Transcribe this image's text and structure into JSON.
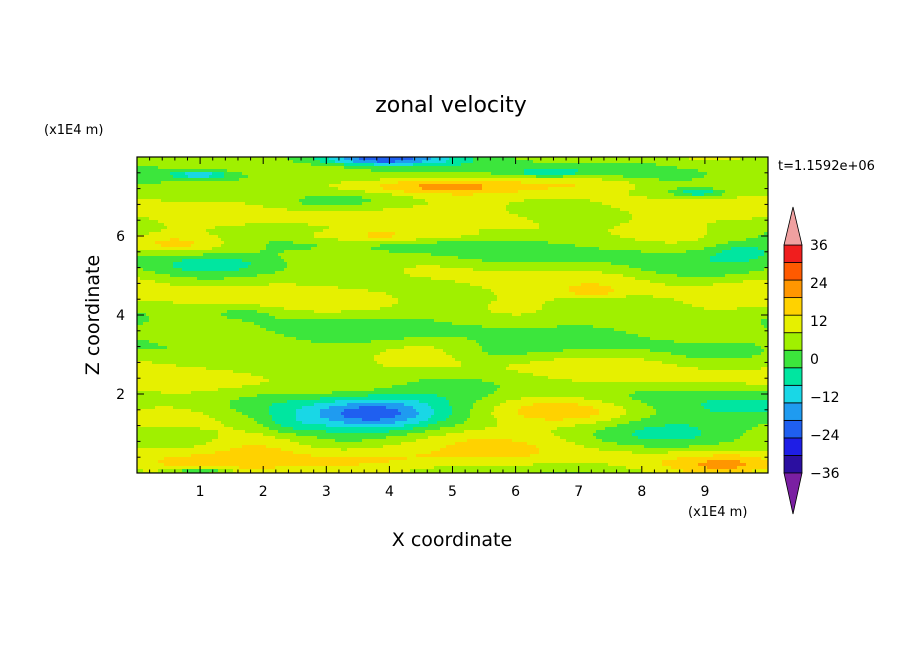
{
  "chart_data": {
    "type": "heatmap",
    "title": "zonal velocity",
    "xlabel": "X coordinate",
    "ylabel": "Z coordinate",
    "x_unit": "(x1E4 m)",
    "y_unit": "(x1E4 m)",
    "time_label": "t=1.1592e+06",
    "xlim": [
      0,
      10
    ],
    "ylim": [
      0,
      8
    ],
    "x_ticks": [
      {
        "v": 1,
        "label": "1"
      },
      {
        "v": 2,
        "label": "2"
      },
      {
        "v": 3,
        "label": "3"
      },
      {
        "v": 4,
        "label": "4"
      },
      {
        "v": 5,
        "label": "5"
      },
      {
        "v": 6,
        "label": "6"
      },
      {
        "v": 7,
        "label": "7"
      },
      {
        "v": 8,
        "label": "8"
      },
      {
        "v": 9,
        "label": "9"
      }
    ],
    "y_ticks": [
      {
        "v": 2,
        "label": "2"
      },
      {
        "v": 4,
        "label": "4"
      },
      {
        "v": 6,
        "label": "6"
      }
    ],
    "colorbar": {
      "levels": [
        -42,
        -36,
        -30,
        -24,
        -18,
        -12,
        -6,
        0,
        6,
        12,
        18,
        24,
        30,
        36,
        42
      ],
      "colors": [
        "#7a1fa2",
        "#2b0fa0",
        "#1e1ee6",
        "#1f5ff0",
        "#1f9bf0",
        "#19d7e6",
        "#00e6a0",
        "#3ce63c",
        "#a0f000",
        "#e6f000",
        "#ffd200",
        "#ff9600",
        "#ff5a00",
        "#f01e1e",
        "#f0a0a0"
      ],
      "under_color": "#7a1fa2",
      "over_color": "#f0a0a0",
      "labels": [
        {
          "v": 36,
          "label": "36"
        },
        {
          "v": 24,
          "label": "24"
        },
        {
          "v": 12,
          "label": "12"
        },
        {
          "v": 0,
          "label": "0"
        },
        {
          "v": -12,
          "label": "−12"
        },
        {
          "v": -24,
          "label": "−24"
        },
        {
          "v": -36,
          "label": "−36"
        }
      ]
    },
    "features": [
      {
        "x": 3.6,
        "z": 1.5,
        "rx": 1.9,
        "rz": 0.8,
        "amp": -14
      },
      {
        "x": 3.7,
        "z": 1.55,
        "rx": 0.9,
        "rz": 0.35,
        "amp": -12
      },
      {
        "x": 2.4,
        "z": 1.2,
        "rx": 0.5,
        "rz": 0.25,
        "amp": -6
      },
      {
        "x": 0.8,
        "z": 1.45,
        "rx": 1.5,
        "rz": 0.5,
        "amp": 10
      },
      {
        "x": 6.8,
        "z": 1.55,
        "rx": 1.6,
        "rz": 0.35,
        "amp": 14
      },
      {
        "x": 6.0,
        "z": 1.1,
        "rx": 1.6,
        "rz": 0.5,
        "amp": 6
      },
      {
        "x": 9.0,
        "z": 1.6,
        "rx": 1.6,
        "rz": 0.6,
        "amp": -9
      },
      {
        "x": 1.9,
        "z": 0.7,
        "rx": 0.8,
        "rz": 0.35,
        "amp": 6
      },
      {
        "x": 3.5,
        "z": 0.35,
        "rx": 2.5,
        "rz": 0.3,
        "amp": 10
      },
      {
        "x": 8.0,
        "z": 0.8,
        "rx": 1.2,
        "rz": 0.4,
        "amp": -7
      },
      {
        "x": 9.4,
        "z": 0.2,
        "rx": 0.8,
        "rz": 0.25,
        "amp": 10
      },
      {
        "x": 1.0,
        "z": 0.05,
        "rx": 0.5,
        "rz": 0.1,
        "amp": -16
      },
      {
        "x": 4.5,
        "z": 7.25,
        "rx": 1.8,
        "rz": 0.2,
        "amp": 14
      },
      {
        "x": 7.3,
        "z": 7.35,
        "rx": 1.2,
        "rz": 0.2,
        "amp": 9
      },
      {
        "x": 9.6,
        "z": 7.35,
        "rx": 0.7,
        "rz": 0.2,
        "amp": 7
      },
      {
        "x": 0.8,
        "z": 7.3,
        "rx": 0.7,
        "rz": 0.2,
        "amp": 7
      },
      {
        "x": 3.8,
        "z": 7.95,
        "rx": 1.0,
        "rz": 0.15,
        "amp": -28
      },
      {
        "x": 1.0,
        "z": 7.55,
        "rx": 0.4,
        "rz": 0.08,
        "amp": -18
      },
      {
        "x": 8.9,
        "z": 7.1,
        "rx": 0.4,
        "rz": 0.1,
        "amp": -14
      },
      {
        "x": 6.5,
        "z": 7.6,
        "rx": 0.6,
        "rz": 0.1,
        "amp": -10
      },
      {
        "x": 4.0,
        "z": 6.0,
        "rx": 1.5,
        "rz": 0.15,
        "amp": 11
      },
      {
        "x": 0.6,
        "z": 5.8,
        "rx": 0.8,
        "rz": 0.2,
        "amp": 8
      },
      {
        "x": 1.2,
        "z": 5.3,
        "rx": 0.7,
        "rz": 0.2,
        "amp": -9
      },
      {
        "x": 9.6,
        "z": 5.6,
        "rx": 0.6,
        "rz": 0.25,
        "amp": -9
      },
      {
        "x": 7.2,
        "z": 4.6,
        "rx": 0.4,
        "rz": 0.15,
        "amp": 9
      },
      {
        "x": 5.5,
        "z": 3.0,
        "rx": 0.8,
        "rz": 0.25,
        "amp": -7
      },
      {
        "x": 1.7,
        "z": 4.1,
        "rx": 0.6,
        "rz": 0.2,
        "amp": -6
      },
      {
        "x": 2.7,
        "z": 6.8,
        "rx": 1.2,
        "rz": 0.2,
        "amp": -6
      }
    ]
  }
}
